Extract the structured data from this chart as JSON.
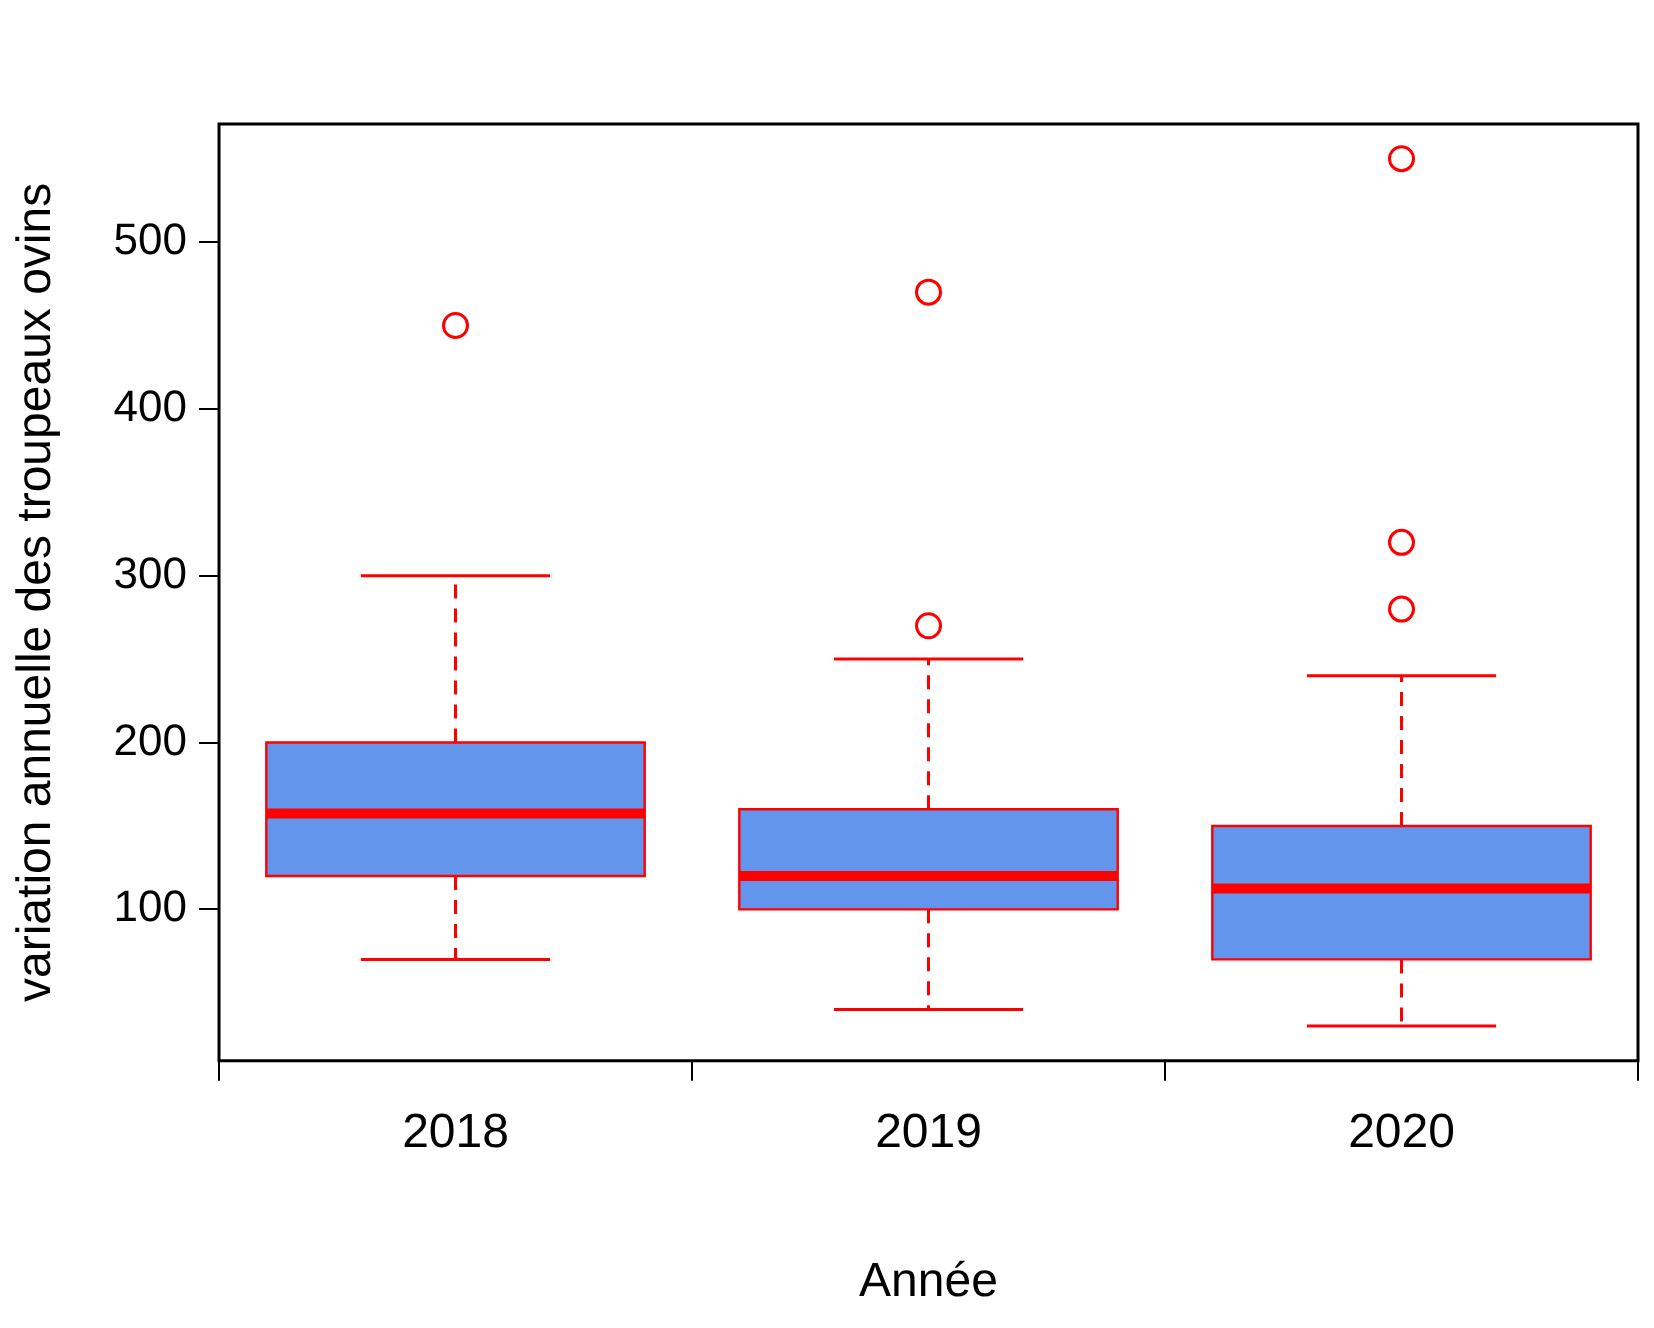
{
  "chart_data": {
    "type": "box",
    "xlabel": "Année",
    "ylabel": "variation annuelle des troupeaux ovins",
    "categories": [
      "2018",
      "2019",
      "2020"
    ],
    "ylim": [
      9.2,
      570.8
    ],
    "yticks": [
      100,
      200,
      300,
      400,
      500
    ],
    "grid": false,
    "legend": false,
    "series": [
      {
        "color": "#6495ed",
        "boxes": [
          {
            "low": 70,
            "q1": 120,
            "median": 157.5,
            "q3": 200,
            "high": 300,
            "outliers": [
              450
            ]
          },
          {
            "low": 40,
            "q1": 100,
            "median": 120,
            "q3": 160,
            "high": 250,
            "outliers": [
              270,
              470
            ]
          },
          {
            "low": 30,
            "q1": 70,
            "median": 112.5,
            "q3": 150,
            "high": 240,
            "outliers": [
              280,
              320,
              550
            ]
          }
        ]
      }
    ]
  }
}
